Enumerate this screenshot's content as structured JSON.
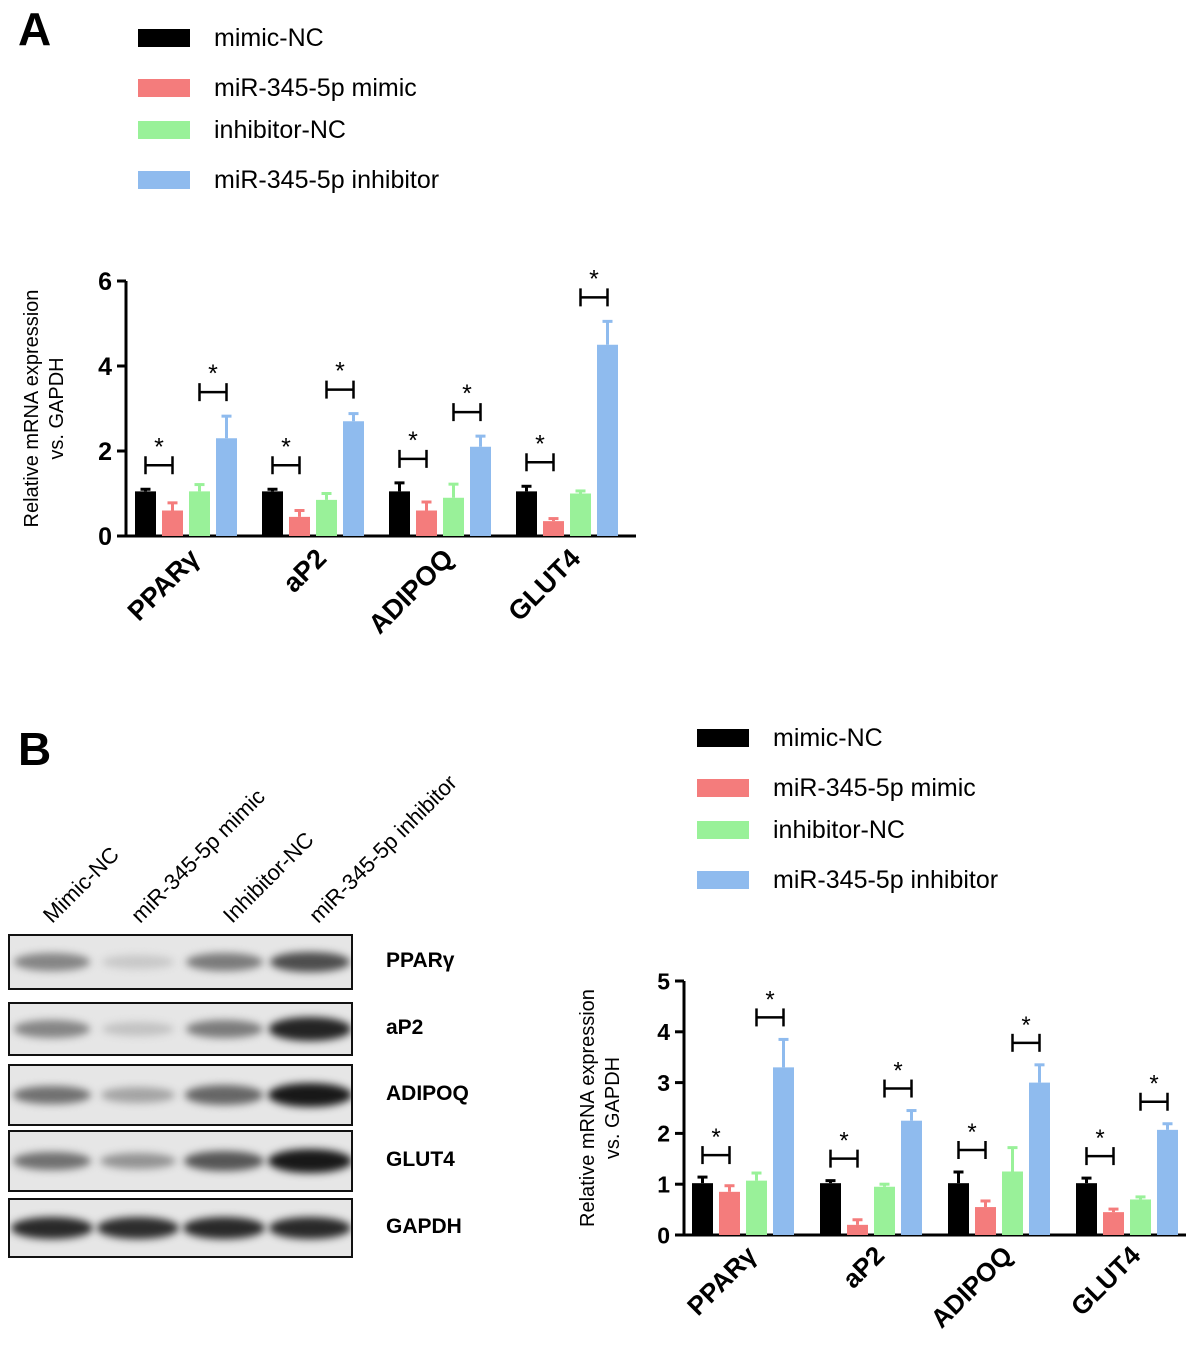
{
  "panels": {
    "a_letter": "A",
    "b_letter": "B"
  },
  "colors": {
    "mimic_nc": "#000000",
    "mir_mimic": "#f47c7c",
    "inhibitor_nc": "#99f199",
    "mir_inhibitor": "#8fbbee"
  },
  "legend": [
    {
      "label": "mimic-NC",
      "color": "#000000"
    },
    {
      "label": "miR-345-5p mimic",
      "color": "#f47c7c"
    },
    {
      "label": "inhibitor-NC",
      "color": "#99f199"
    },
    {
      "label": "miR-345-5p inhibitor",
      "color": "#8fbbee"
    }
  ],
  "blot": {
    "lanes": [
      "Mimic-NC",
      "miR-345-5p mimic",
      "Inhibitor-NC",
      "miR-345-5p inhibitor"
    ],
    "proteins": [
      {
        "label": "PPARγ",
        "intensity": [
          0.45,
          0.12,
          0.5,
          0.72
        ]
      },
      {
        "label": "aP2",
        "intensity": [
          0.45,
          0.15,
          0.5,
          0.92
        ]
      },
      {
        "label": "ADIPOQ",
        "intensity": [
          0.55,
          0.3,
          0.6,
          0.98
        ]
      },
      {
        "label": "GLUT4",
        "intensity": [
          0.55,
          0.38,
          0.68,
          0.98
        ]
      },
      {
        "label": "GAPDH",
        "intensity": [
          0.9,
          0.88,
          0.9,
          0.9
        ]
      }
    ]
  },
  "chart_data": [
    {
      "type": "bar",
      "panel": "A",
      "categories": [
        "PPARγ",
        "aP2",
        "ADIPOQ",
        "GLUT4"
      ],
      "ylabel_line1": "Relative mRNA expression",
      "ylabel_line2": "vs. GAPDH",
      "ylim": [
        0,
        6
      ],
      "yticks": [
        0,
        2,
        4,
        6
      ],
      "significance": "*",
      "series": [
        {
          "name": "mimic-NC",
          "values": [
            1.05,
            1.05,
            1.05,
            1.05
          ],
          "errors": [
            0.05,
            0.05,
            0.2,
            0.12
          ]
        },
        {
          "name": "miR-345-5p mimic",
          "values": [
            0.6,
            0.45,
            0.6,
            0.35
          ],
          "errors": [
            0.18,
            0.15,
            0.2,
            0.06
          ]
        },
        {
          "name": "inhibitor-NC",
          "values": [
            1.05,
            0.85,
            0.9,
            1.0
          ],
          "errors": [
            0.16,
            0.15,
            0.32,
            0.06
          ]
        },
        {
          "name": "miR-345-5p inhibitor",
          "values": [
            2.3,
            2.7,
            2.1,
            4.5
          ],
          "errors": [
            0.52,
            0.18,
            0.25,
            0.55
          ]
        }
      ]
    },
    {
      "type": "bar",
      "panel": "B",
      "categories": [
        "PPARγ",
        "aP2",
        "ADIPOQ",
        "GLUT4"
      ],
      "ylabel_line1": "Relative mRNA expression",
      "ylabel_line2": "vs. GAPDH",
      "ylim": [
        0,
        5
      ],
      "yticks": [
        0,
        1,
        2,
        3,
        4,
        5
      ],
      "significance": "*",
      "series": [
        {
          "name": "mimic-NC",
          "values": [
            1.02,
            1.02,
            1.02,
            1.02
          ],
          "errors": [
            0.12,
            0.05,
            0.22,
            0.1
          ]
        },
        {
          "name": "miR-345-5p mimic",
          "values": [
            0.85,
            0.2,
            0.55,
            0.45
          ],
          "errors": [
            0.12,
            0.1,
            0.12,
            0.06
          ]
        },
        {
          "name": "inhibitor-NC",
          "values": [
            1.07,
            0.95,
            1.25,
            0.7
          ],
          "errors": [
            0.15,
            0.05,
            0.47,
            0.05
          ]
        },
        {
          "name": "miR-345-5p inhibitor",
          "values": [
            3.3,
            2.25,
            3.0,
            2.07
          ],
          "errors": [
            0.55,
            0.2,
            0.35,
            0.12
          ]
        }
      ]
    }
  ]
}
